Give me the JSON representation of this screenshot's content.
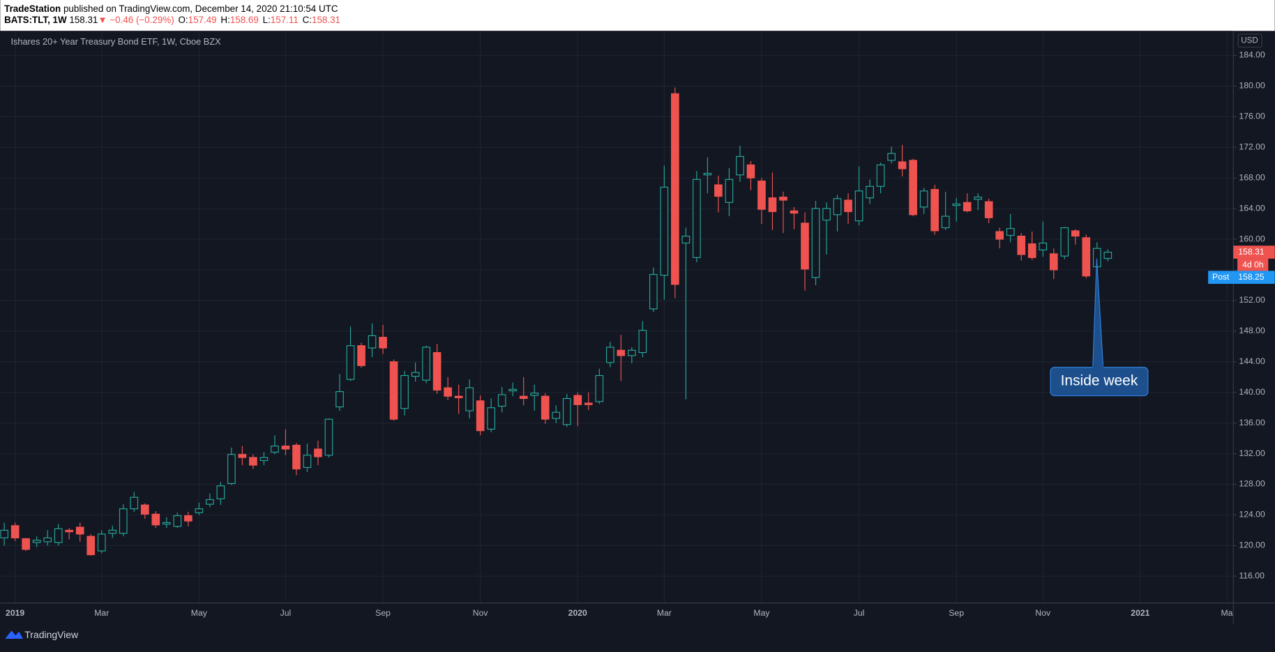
{
  "header": {
    "publisher": "TradeStation",
    "published": "published on TradingView.com, December 14, 2020 21:10:54 UTC",
    "symbol": "BATS:TLT, 1W",
    "price": "158.31",
    "arrow": "▼",
    "change": "−0.46 (−0.29%)",
    "ohlc": [
      {
        "key": "O:",
        "value": "157.49"
      },
      {
        "key": "H:",
        "value": "158.69"
      },
      {
        "key": "L:",
        "value": "157.11"
      },
      {
        "key": "C:",
        "value": "158.31"
      }
    ]
  },
  "chart_data": {
    "type": "candlestick",
    "title": "Ishares 20+ Year Treasury Bond ETF, 1W, Cboe BZX",
    "currency": "USD",
    "up_color": "#26a69a",
    "down_color": "#ef5350",
    "categories": [
      null,
      "2019",
      null,
      null,
      null,
      null,
      null,
      null,
      null,
      "Mar",
      null,
      null,
      null,
      null,
      null,
      null,
      null,
      null,
      "May",
      null,
      null,
      null,
      null,
      null,
      null,
      null,
      "Jul",
      null,
      null,
      null,
      null,
      null,
      null,
      null,
      null,
      "Sep",
      null,
      null,
      null,
      null,
      null,
      null,
      null,
      null,
      "Nov",
      null,
      null,
      null,
      null,
      null,
      null,
      null,
      null,
      "2020",
      null,
      null,
      null,
      null,
      null,
      null,
      null,
      "Mar",
      null,
      null,
      null,
      null,
      null,
      null,
      null,
      null,
      "May",
      null,
      null,
      null,
      null,
      null,
      null,
      null,
      null,
      "Jul",
      null,
      null,
      null,
      null,
      null,
      null,
      null,
      null,
      "Sep",
      null,
      null,
      null,
      null,
      null,
      null,
      null,
      "Nov",
      null,
      null,
      null,
      null,
      null,
      null,
      null,
      null,
      "2021",
      null,
      null,
      null,
      null,
      null,
      null,
      null,
      "Ma"
    ],
    "open": [
      121,
      122.6,
      120.9,
      120.4,
      120.5,
      120.4,
      122,
      122.4,
      121.2,
      119.3,
      121.6,
      121.6,
      124.8,
      125.3,
      124.1,
      122.8,
      122.5,
      123.9,
      124.3,
      125.4,
      126.1,
      128.1,
      131.9,
      131.5,
      131.1,
      132.2,
      133,
      133.1,
      130.2,
      132.6,
      131.8,
      138.1,
      141.7,
      146.1,
      145.8,
      147.2,
      144,
      137.9,
      142.1,
      141.6,
      145.2,
      140.6,
      139.5,
      137.6,
      138.9,
      135.2,
      138.2,
      140.2,
      139.5,
      139.6,
      139.5,
      136.6,
      135.8,
      139.6,
      138.6,
      138.8,
      143.9,
      145.5,
      144.8,
      145.2,
      150.9,
      155.3,
      179,
      159.5,
      157.6,
      168.4,
      167.1,
      164.8,
      168.4,
      169.7,
      167.6,
      165.4,
      165.5,
      163.7,
      162.1,
      155,
      162.5,
      163.2,
      165.1,
      162.4,
      165.4,
      166.9,
      170.3,
      170.1,
      170.3,
      164.2,
      166.5,
      161.5,
      164.4,
      164.8,
      165.2,
      164.9,
      161,
      160.5,
      160.4,
      159.4,
      158.6,
      158.1,
      157.8,
      161.1,
      160.2,
      156.4,
      157.49,
      null,
      null,
      null,
      null,
      null,
      null,
      null,
      null,
      null,
      null,
      null
    ],
    "high": [
      123,
      123,
      121,
      121.2,
      122,
      122.8,
      122.3,
      123,
      121.5,
      122,
      122.6,
      125.4,
      127,
      125.5,
      124.5,
      123.7,
      124.3,
      124.4,
      125.6,
      126.8,
      128.3,
      132.8,
      133,
      131.9,
      132.2,
      134.4,
      135.2,
      133.4,
      133.3,
      133.7,
      136.6,
      142.4,
      148.6,
      146.5,
      149,
      148.8,
      144.3,
      142.8,
      143.9,
      146.1,
      146.3,
      142,
      141,
      141.7,
      139.6,
      139.2,
      140.7,
      141.3,
      142,
      141,
      139.9,
      138.3,
      139.8,
      140,
      140,
      143.1,
      146.6,
      147.5,
      145.9,
      149.3,
      156.3,
      169.6,
      179.8,
      161.5,
      168.9,
      170.7,
      168.3,
      169.3,
      172.2,
      170.2,
      168,
      168.7,
      166.2,
      164.2,
      163.5,
      165,
      164.8,
      165.8,
      166,
      169.5,
      167.8,
      170,
      172.1,
      172.3,
      170.5,
      166.7,
      167.1,
      166.2,
      165.4,
      166,
      166,
      165.3,
      161.5,
      163.3,
      160.8,
      161,
      162.3,
      158.8,
      161.6,
      161.3,
      160.6,
      159.6,
      158.69,
      null,
      null,
      null,
      null,
      null,
      null,
      null,
      null,
      null,
      null,
      null
    ],
    "low": [
      120,
      120.6,
      119.3,
      119.8,
      120,
      120,
      120.8,
      120.5,
      118.7,
      119,
      121,
      121.2,
      124.4,
      123.5,
      122.3,
      122.3,
      122.3,
      122.5,
      124,
      125,
      125.3,
      127.9,
      130.5,
      130,
      130.5,
      131.9,
      131.8,
      129.2,
      129.6,
      130.5,
      131.5,
      137.6,
      141.5,
      143.2,
      144.6,
      145,
      136.3,
      137,
      141.4,
      141.2,
      139.8,
      139,
      137.2,
      136.6,
      134.4,
      134.8,
      137.4,
      139.5,
      138.3,
      137.6,
      135.9,
      136,
      135.5,
      135.6,
      137.7,
      138.5,
      143.3,
      141.5,
      143.8,
      144.6,
      150.5,
      152.1,
      152.3,
      139.1,
      157,
      166,
      163.5,
      163,
      167.5,
      166.4,
      162,
      161.2,
      160.8,
      161.3,
      153.3,
      154,
      158,
      161,
      162,
      161.8,
      164.6,
      166,
      169.9,
      168.2,
      163,
      163.3,
      160.6,
      161.2,
      162.3,
      163.5,
      163.8,
      162.1,
      158.8,
      159.6,
      157.2,
      157.3,
      157.7,
      154.8,
      157.4,
      159.3,
      154.9,
      156.2,
      157.11,
      null,
      null,
      null,
      null,
      null,
      null,
      null,
      null,
      null,
      null,
      null
    ],
    "close": [
      122,
      121,
      119.5,
      120.7,
      121,
      122.2,
      121.8,
      121.5,
      118.8,
      121.5,
      122,
      124.8,
      126.3,
      124.1,
      122.7,
      123,
      123.9,
      123.2,
      124.8,
      126,
      127.8,
      131.9,
      131.5,
      130.5,
      131.5,
      133,
      132.6,
      130,
      131.8,
      131.6,
      136.5,
      140.1,
      146.1,
      143.5,
      147.4,
      145.8,
      136.5,
      142.2,
      142.6,
      145.9,
      140.3,
      139.5,
      139.3,
      140.6,
      135,
      138,
      139.7,
      140.4,
      139.2,
      139.9,
      136.5,
      137.4,
      139.2,
      138.4,
      138.4,
      142.2,
      145.9,
      144.8,
      145.5,
      148.1,
      155.4,
      166.8,
      154.1,
      160.4,
      167.8,
      168.6,
      165.6,
      167.8,
      170.8,
      168,
      163.9,
      163.6,
      165.1,
      163.4,
      156.1,
      164,
      164,
      165.3,
      163.6,
      166.3,
      166.9,
      169.7,
      171.2,
      169.2,
      163.2,
      166.3,
      161.1,
      163,
      164.6,
      163.7,
      165.5,
      162.8,
      160,
      161.4,
      158,
      157.6,
      159.5,
      156,
      161.5,
      160.4,
      155.2,
      158.8,
      158.31,
      null,
      null,
      null,
      null,
      null,
      null,
      null,
      null,
      null,
      null,
      null
    ],
    "ylim": [
      112.5,
      187.2
    ],
    "yticks": [
      {
        "value": 116,
        "label": "116.00"
      },
      {
        "value": 120,
        "label": "120.00"
      },
      {
        "value": 124,
        "label": "124.00"
      },
      {
        "value": 128,
        "label": "128.00"
      },
      {
        "value": 132,
        "label": "132.00"
      },
      {
        "value": 136,
        "label": "136.00"
      },
      {
        "value": 140,
        "label": "140.00"
      },
      {
        "value": 144,
        "label": "144.00"
      },
      {
        "value": 148,
        "label": "148.00"
      },
      {
        "value": 152,
        "label": "152.00"
      },
      {
        "value": 156,
        "label": "156.00"
      },
      {
        "value": 160,
        "label": "160.00"
      },
      {
        "value": 164,
        "label": "164.00"
      },
      {
        "value": 168,
        "label": "168.00"
      },
      {
        "value": 172,
        "label": "172.00"
      },
      {
        "value": 176,
        "label": "176.00"
      },
      {
        "value": 180,
        "label": "180.00"
      },
      {
        "value": 184,
        "label": "184.00"
      }
    ],
    "grid": true,
    "last_price": {
      "value": 158.31,
      "label": "158.31"
    },
    "countdown": "4d 0h",
    "post_price": {
      "name": "Post",
      "value": 158.25,
      "label": "158.25"
    },
    "annotation": "Inside week"
  },
  "footer": {
    "brand": "TradingView"
  }
}
